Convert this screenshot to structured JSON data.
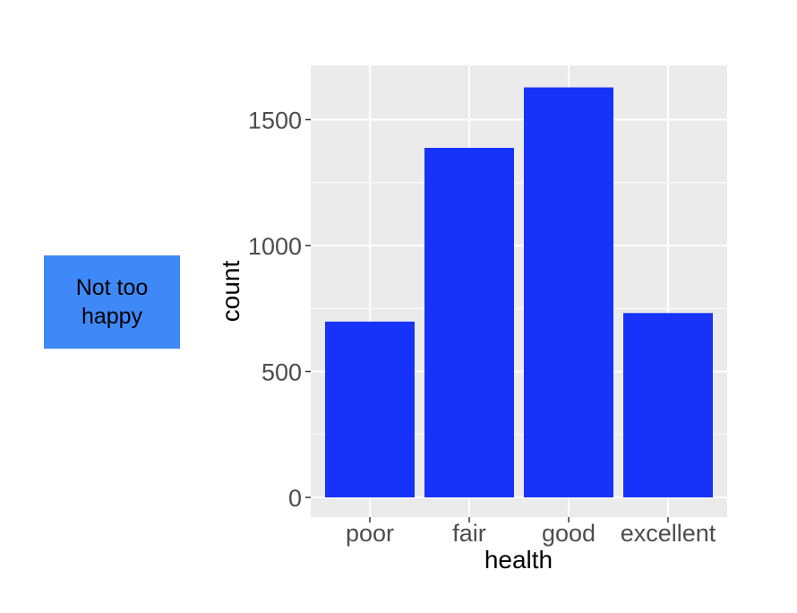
{
  "side_label": {
    "text": "Not too happy"
  },
  "colors": {
    "bar": "#1733fa",
    "panel": "#ebebeb",
    "grid": "#ffffff",
    "label_box": "#3f88f7"
  },
  "chart_data": {
    "type": "bar",
    "categories": [
      "poor",
      "fair",
      "good",
      "excellent"
    ],
    "values": [
      698,
      1388,
      1628,
      732
    ],
    "xlabel": "health",
    "ylabel": "count",
    "ylim": [
      0,
      1700
    ],
    "yticks": [
      0,
      500,
      1000,
      1500
    ],
    "grid": true
  }
}
